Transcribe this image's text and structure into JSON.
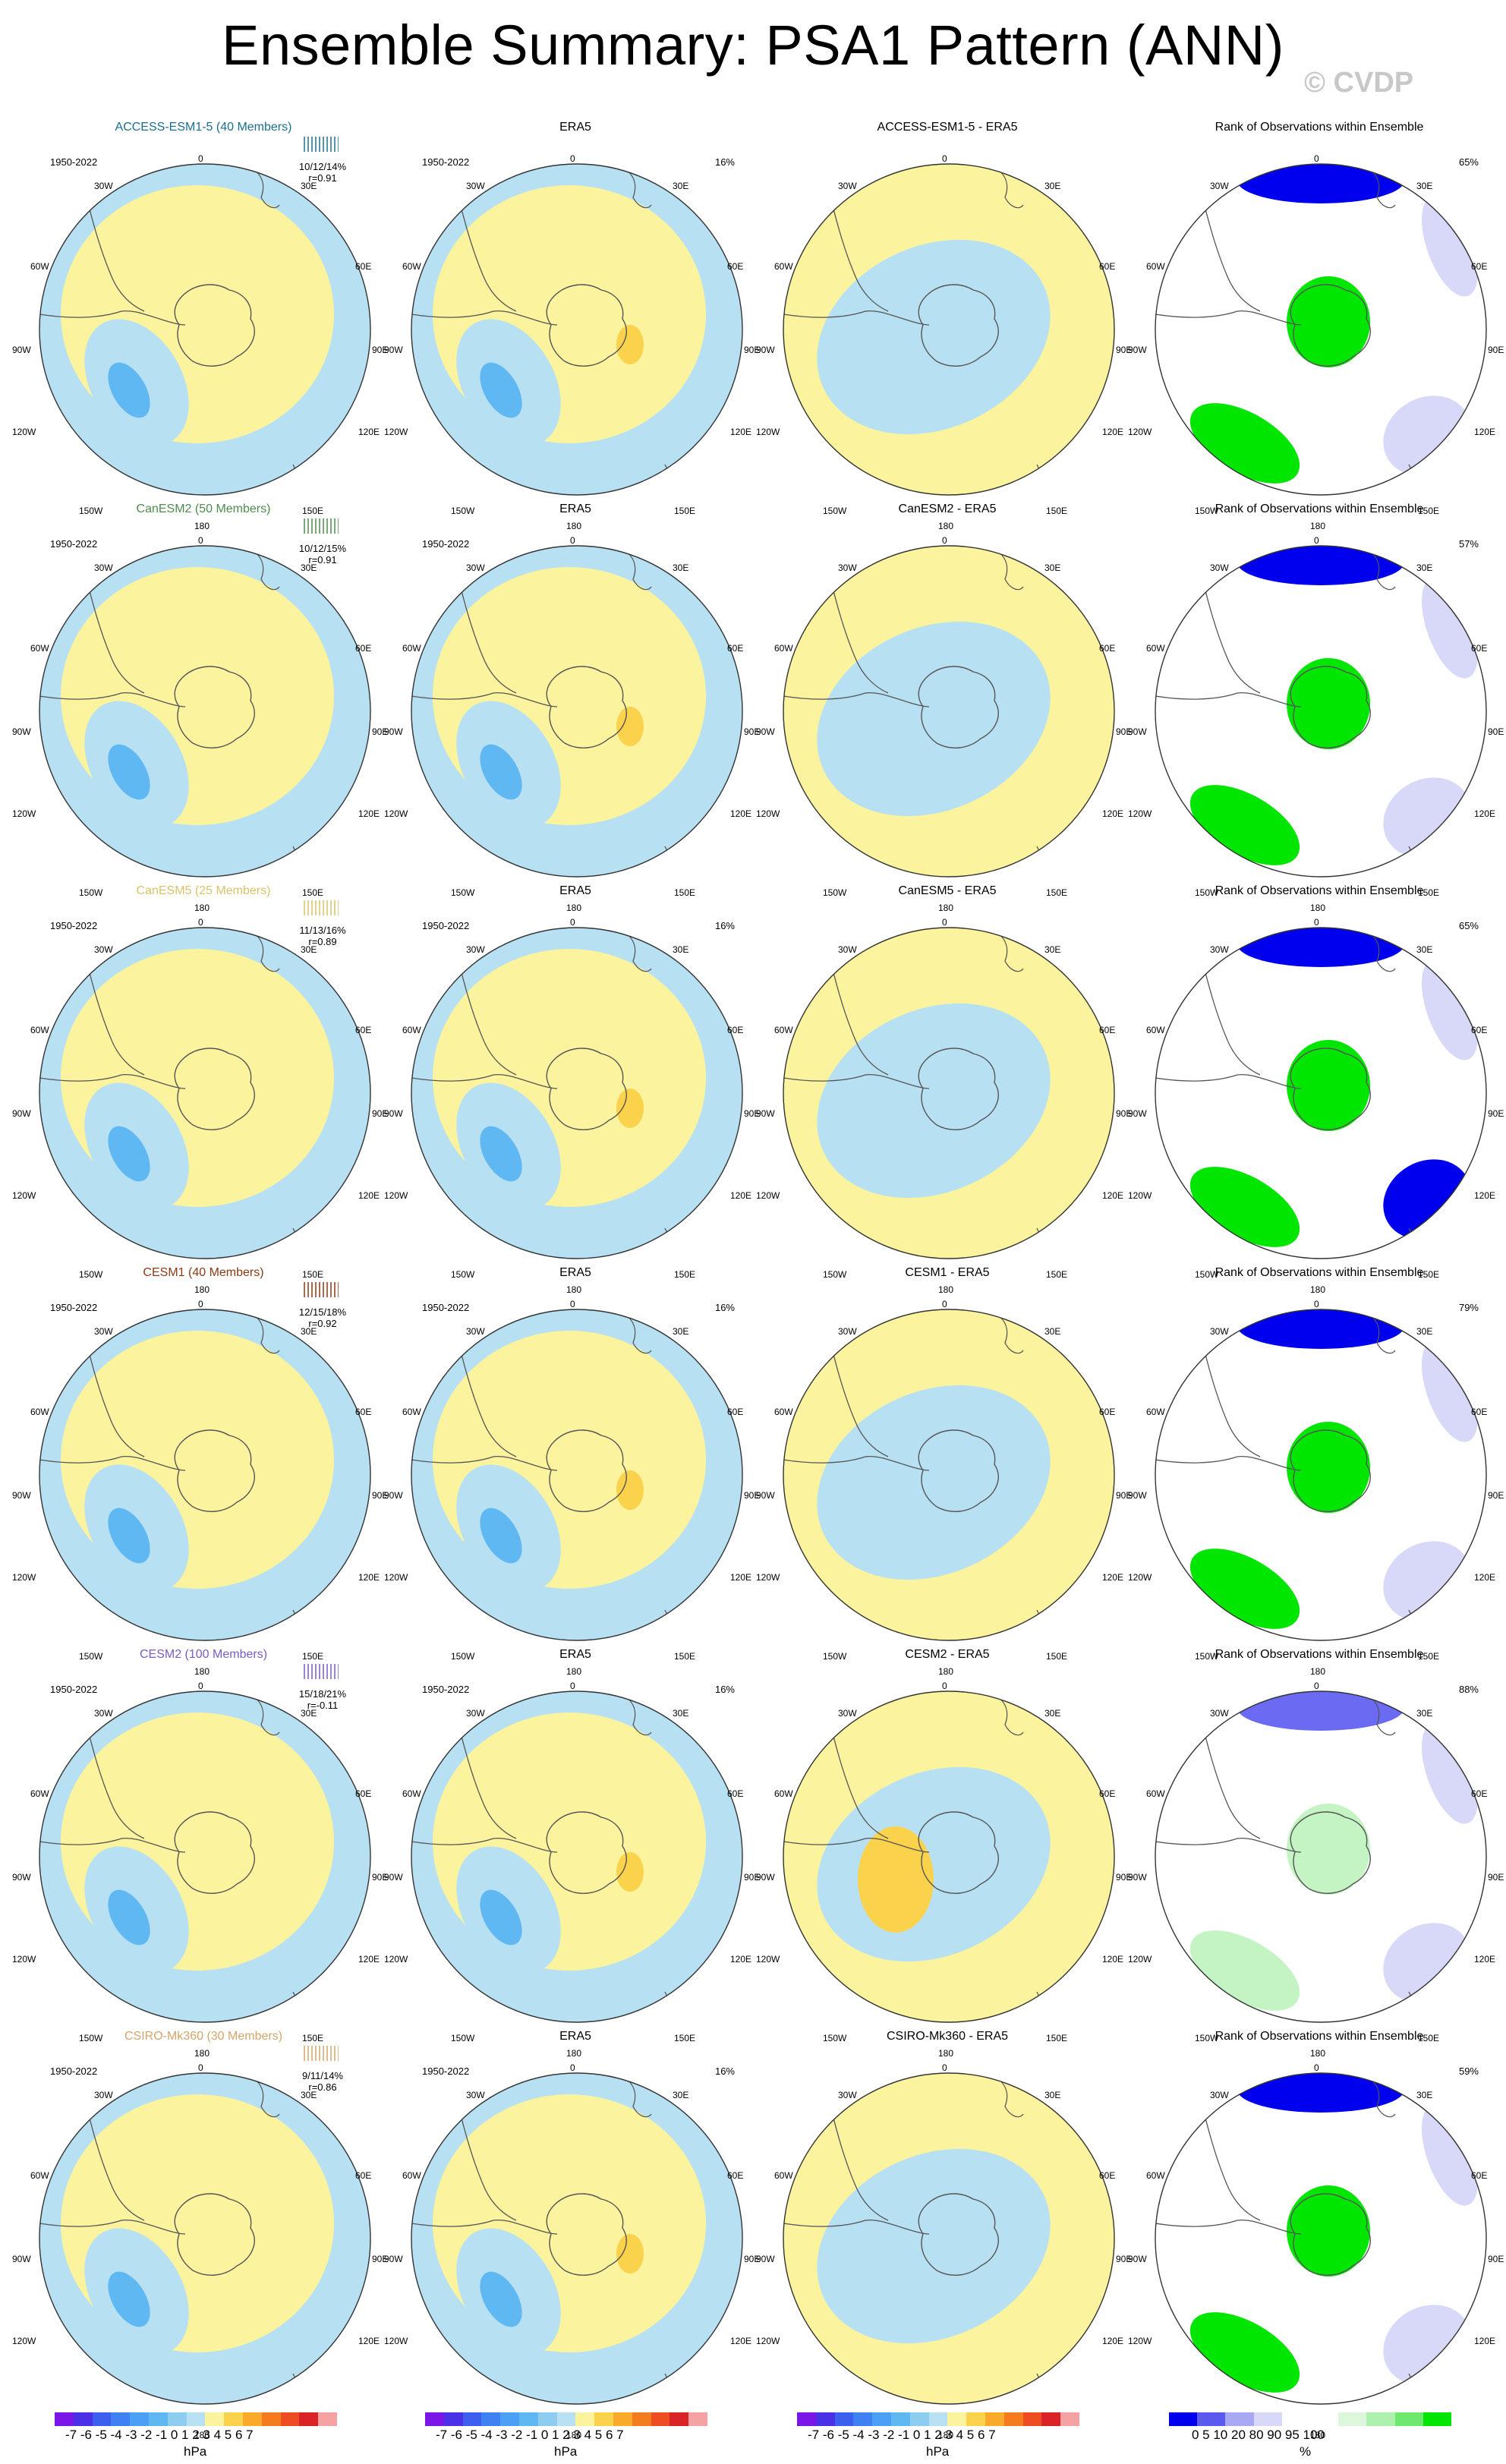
{
  "title": "Ensemble Summary: PSA1 Pattern (ANN)",
  "copyright": "© CVDP",
  "period": "1950-2022",
  "map_labels": {
    "lon_0": "0",
    "lon_30w": "30W",
    "lon_30e": "30E",
    "lon_60w": "60W",
    "lon_60e": "60E",
    "lon_90w": "90W",
    "lon_90e": "90E",
    "lon_120w": "120W",
    "lon_120e": "120E",
    "lon_150w": "150W",
    "lon_150e": "150E",
    "lon_180": "180"
  },
  "rows": [
    {
      "model": "ACCESS-ESM1-5 (40 Members)",
      "model_color": "#1a6f8f",
      "stats": "10/12/14%",
      "r": "r=0.91",
      "obs_title": "ERA5",
      "obs_pct": "16%",
      "diff_title": "ACCESS-ESM1-5 - ERA5",
      "rank_title": "Rank of Observations within Ensemble",
      "rank_pct": "65%"
    },
    {
      "model": "CanESM2 (50 Members)",
      "model_color": "#4e8b4e",
      "stats": "10/12/15%",
      "r": "r=0.91",
      "obs_title": "ERA5",
      "obs_pct": "",
      "diff_title": "CanESM2 - ERA5",
      "rank_title": "Rank of Observations within Ensemble",
      "rank_pct": "57%"
    },
    {
      "model": "CanESM5 (25 Members)",
      "model_color": "#d8c36a",
      "stats": "11/13/16%",
      "r": "r=0.89",
      "obs_title": "ERA5",
      "obs_pct": "16%",
      "diff_title": "CanESM5 - ERA5",
      "rank_title": "Rank of Observations within Ensemble",
      "rank_pct": "65%"
    },
    {
      "model": "CESM1 (40 Members)",
      "model_color": "#8a3a12",
      "stats": "12/15/18%",
      "r": "r=0.92",
      "obs_title": "ERA5",
      "obs_pct": "16%",
      "diff_title": "CESM1 - ERA5",
      "rank_title": "Rank of Observations within Ensemble",
      "rank_pct": "79%"
    },
    {
      "model": "CESM2 (100 Members)",
      "model_color": "#7a5bc7",
      "stats": "15/18/21%",
      "r": "r=-0.11",
      "obs_title": "ERA5",
      "obs_pct": "16%",
      "diff_title": "CESM2 - ERA5",
      "rank_title": "Rank of Observations within Ensemble",
      "rank_pct": "88%"
    },
    {
      "model": "CSIRO-Mk360 (30 Members)",
      "model_color": "#d6a46a",
      "stats": "9/11/14%",
      "r": "r=0.86",
      "obs_title": "ERA5",
      "obs_pct": "16%",
      "diff_title": "CSIRO-Mk360 - ERA5",
      "rank_title": "Rank of Observations within Ensemble",
      "rank_pct": "59%"
    }
  ],
  "colorbar_hpa": {
    "ticks": "-7 -6 -5 -4 -3 -2 -1 0  1  2  3  4  5  6  7",
    "unit": "hPa",
    "colors": [
      "#7b16e8",
      "#4a30e6",
      "#3d5ff0",
      "#3f80f2",
      "#4aa0f5",
      "#5fb8f2",
      "#8dcdf0",
      "#b7e1f3",
      "#fbf39d",
      "#fbd24b",
      "#f9aa2a",
      "#f47c1f",
      "#ee4c22",
      "#d92326",
      "#f4a2a2"
    ]
  },
  "colorbar_rank": {
    "ticks": "0    5   10        20      80        90   95  100",
    "unit": "%",
    "colors": [
      "#0000ee",
      "#5a5af0",
      "#a8a8f4",
      "#d8d8f8",
      "#ffffff",
      "#ffffff",
      "#dcf7dc",
      "#aef0ae",
      "#6ee86e",
      "#00e600"
    ]
  },
  "colors": {
    "neg": "#b7e1f3",
    "neg_mid": "#8dcdf0",
    "neg_strong": "#5fb8f2",
    "pos": "#fbf39d",
    "pos_mid": "#fbd24b",
    "rank_low": "#0000ee",
    "rank_low_mid": "#6a6af2",
    "rank_low_light": "#d8d8f8",
    "rank_high": "#00e600",
    "rank_high_light": "#c4f4c4"
  }
}
